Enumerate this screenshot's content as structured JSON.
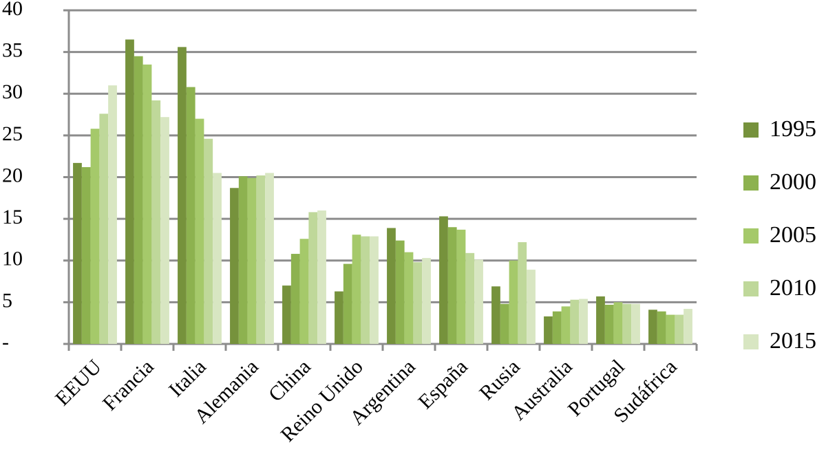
{
  "chart_data": {
    "type": "bar",
    "categories": [
      "EEUU",
      "Francia",
      "Italia",
      "Alemania",
      "China",
      "Reino Unido",
      "Argentina",
      "España",
      "Rusia",
      "Australia",
      "Portugal",
      "Sudáfrica"
    ],
    "series": [
      {
        "name": "1995",
        "color": "#76923c",
        "values": [
          21.7,
          36.5,
          35.6,
          18.7,
          7.0,
          6.3,
          13.9,
          15.3,
          6.9,
          3.3,
          5.7,
          4.1
        ]
      },
      {
        "name": "2000",
        "color": "#8db24f",
        "values": [
          21.2,
          34.5,
          30.8,
          20.1,
          10.8,
          9.6,
          12.4,
          14.0,
          4.8,
          3.9,
          4.7,
          3.9
        ]
      },
      {
        "name": "2005",
        "color": "#a5c96a",
        "values": [
          25.8,
          33.5,
          27.0,
          19.9,
          12.6,
          13.1,
          11.0,
          13.7,
          10.0,
          4.5,
          5.0,
          3.5
        ]
      },
      {
        "name": "2010",
        "color": "#bfd89a",
        "values": [
          27.6,
          29.2,
          24.6,
          20.2,
          15.8,
          12.9,
          9.8,
          10.9,
          12.2,
          5.3,
          4.8,
          3.5
        ]
      },
      {
        "name": "2015",
        "color": "#d8e6c2",
        "values": [
          31.0,
          27.2,
          20.5,
          20.5,
          16.0,
          12.9,
          10.3,
          10.1,
          8.9,
          5.4,
          4.8,
          4.2
        ]
      }
    ],
    "ylim": [
      0,
      40
    ],
    "yticks": [
      {
        "value": 0,
        "label": "-"
      },
      5,
      10,
      15,
      20,
      25,
      30,
      35,
      40
    ],
    "grid": true,
    "legend": "right"
  }
}
